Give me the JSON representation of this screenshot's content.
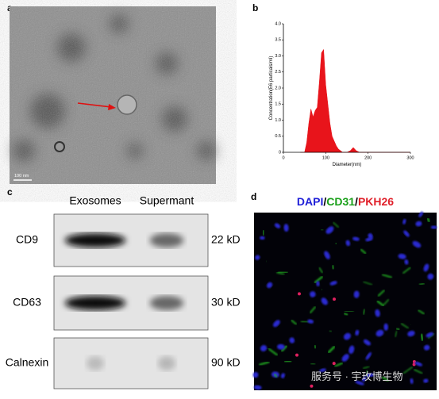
{
  "panel_labels": [
    "a",
    "b",
    "c",
    "d"
  ],
  "tem": {
    "scale_bar": "100 nm"
  },
  "chart_data": {
    "type": "area",
    "color": "#e8141b",
    "ylabel": "Concentration(E6 particals/ml)",
    "xlabel": "Diameter(nm)",
    "x": [
      40,
      50,
      55,
      60,
      65,
      70,
      75,
      80,
      85,
      90,
      95,
      100,
      105,
      110,
      115,
      120,
      125,
      130,
      140,
      150,
      158,
      165,
      172,
      180,
      300
    ],
    "values": [
      0,
      0,
      0.3,
      0.9,
      1.35,
      1.1,
      1.3,
      1.4,
      2.2,
      3.1,
      3.2,
      2.1,
      1.5,
      0.9,
      0.5,
      0.35,
      0.2,
      0.1,
      0,
      0,
      0.05,
      0.15,
      0.05,
      0,
      0
    ],
    "xlim": [
      0,
      300
    ],
    "xticks": [
      0,
      100,
      200,
      300
    ],
    "ylim": [
      0,
      4
    ],
    "yticks": [
      0,
      0.5,
      {
        "value": 1,
        "label": "1.0"
      },
      1.5,
      {
        "value": 2,
        "label": "2.0"
      },
      2.5,
      {
        "value": 3,
        "label": "3.0"
      },
      3.5,
      {
        "value": 4,
        "label": "4.0"
      }
    ]
  },
  "blot": {
    "columns": [
      "Exosomes",
      "Supermant"
    ],
    "rows": [
      {
        "protein": "CD9",
        "size": "22 kD"
      },
      {
        "protein": "CD63",
        "size": "30 kD"
      },
      {
        "protein": "Calnexin",
        "size": "90 kD"
      }
    ]
  },
  "fluorescence": {
    "separator": "/",
    "stains": [
      {
        "name": "DAPI",
        "color": "#2020d8"
      },
      {
        "name": "CD31",
        "color": "#1aa01a"
      },
      {
        "name": "PKH26",
        "color": "#e0202a"
      }
    ],
    "watermark": "服务号 · 宇玫博生物"
  }
}
